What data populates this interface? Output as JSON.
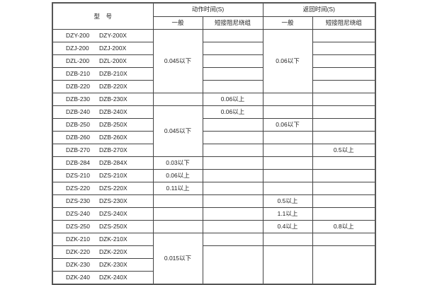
{
  "header": {
    "model": "型　号",
    "action_time": "动作时间(S)",
    "return_time": "返回时间(S)",
    "general": "一般",
    "short_damping": "短接阻尼绕组"
  },
  "rows": [
    {
      "model": "DZY-200",
      "model_x": "DZY-200X",
      "action_general": "0.045以下",
      "action_short": "",
      "return_general": "0.06以下",
      "return_short": ""
    },
    {
      "model": "DZJ-200",
      "model_x": "DZJ-200X",
      "action_general": null,
      "action_short": "",
      "return_general": null,
      "return_short": ""
    },
    {
      "model": "DZL-200",
      "model_x": "DZL-200X",
      "action_general": null,
      "action_short": "",
      "return_general": null,
      "return_short": ""
    },
    {
      "model": "DZB-210",
      "model_x": "DZB-210X",
      "action_general": null,
      "action_short": "",
      "return_general": null,
      "return_short": ""
    },
    {
      "model": "DZB-220",
      "model_x": "DZB-220X",
      "action_general": null,
      "action_short": "",
      "return_general": null,
      "return_short": ""
    },
    {
      "model": "DZB-230",
      "model_x": "DZB-230X",
      "action_general": "",
      "action_short": "0.06以上",
      "return_general": "",
      "return_short": ""
    },
    {
      "model": "DZB-240",
      "model_x": "DZB-240X",
      "action_general": "0.045以下",
      "action_short": "0.06以上",
      "return_general": "",
      "return_short": ""
    },
    {
      "model": "DZB-250",
      "model_x": "DZB-250X",
      "action_general": null,
      "action_short": "",
      "return_general": "0.06以下",
      "return_short": ""
    },
    {
      "model": "DZB-260",
      "model_x": "DZB-260X",
      "action_general": null,
      "action_short": "",
      "return_general": "",
      "return_short": ""
    },
    {
      "model": "DZB-270",
      "model_x": "DZB-270X",
      "action_general": null,
      "action_short": "",
      "return_general": "",
      "return_short": "0.5以上"
    },
    {
      "model": "DZB-284",
      "model_x": "DZB-284X",
      "action_general": "0.03以下",
      "action_short": "",
      "return_general": "",
      "return_short": ""
    },
    {
      "model": "DZS-210",
      "model_x": "DZS-210X",
      "action_general": "0.06以上",
      "action_short": "",
      "return_general": "",
      "return_short": ""
    },
    {
      "model": "DZS-220",
      "model_x": "DZS-220X",
      "action_general": "0.11以上",
      "action_short": "",
      "return_general": "",
      "return_short": ""
    },
    {
      "model": "DZS-230",
      "model_x": "DZS-230X",
      "action_general": "",
      "action_short": "",
      "return_general": "0.5以上",
      "return_short": ""
    },
    {
      "model": "DZS-240",
      "model_x": "DZS-240X",
      "action_general": "",
      "action_short": "",
      "return_general": "1.1以上",
      "return_short": ""
    },
    {
      "model": "DZS-250",
      "model_x": "DZS-250X",
      "action_general": "",
      "action_short": "",
      "return_general": "0.4以上",
      "return_short": "0.8以上"
    },
    {
      "model": "DZK-210",
      "model_x": "DZK-210X",
      "action_general": "0.015以下",
      "action_short": "",
      "return_general": "",
      "return_short": ""
    },
    {
      "model": "DZK-220",
      "model_x": "DZK-220X",
      "action_general": null,
      "action_short": "",
      "return_general": "",
      "return_short": ""
    },
    {
      "model": "DZK-230",
      "model_x": "DZK-230X",
      "action_general": null,
      "action_short": null,
      "return_general": null,
      "return_short": null
    },
    {
      "model": "DZK-240",
      "model_x": "DZK-240X",
      "action_general": null,
      "action_short": null,
      "return_general": null,
      "return_short": null
    }
  ]
}
